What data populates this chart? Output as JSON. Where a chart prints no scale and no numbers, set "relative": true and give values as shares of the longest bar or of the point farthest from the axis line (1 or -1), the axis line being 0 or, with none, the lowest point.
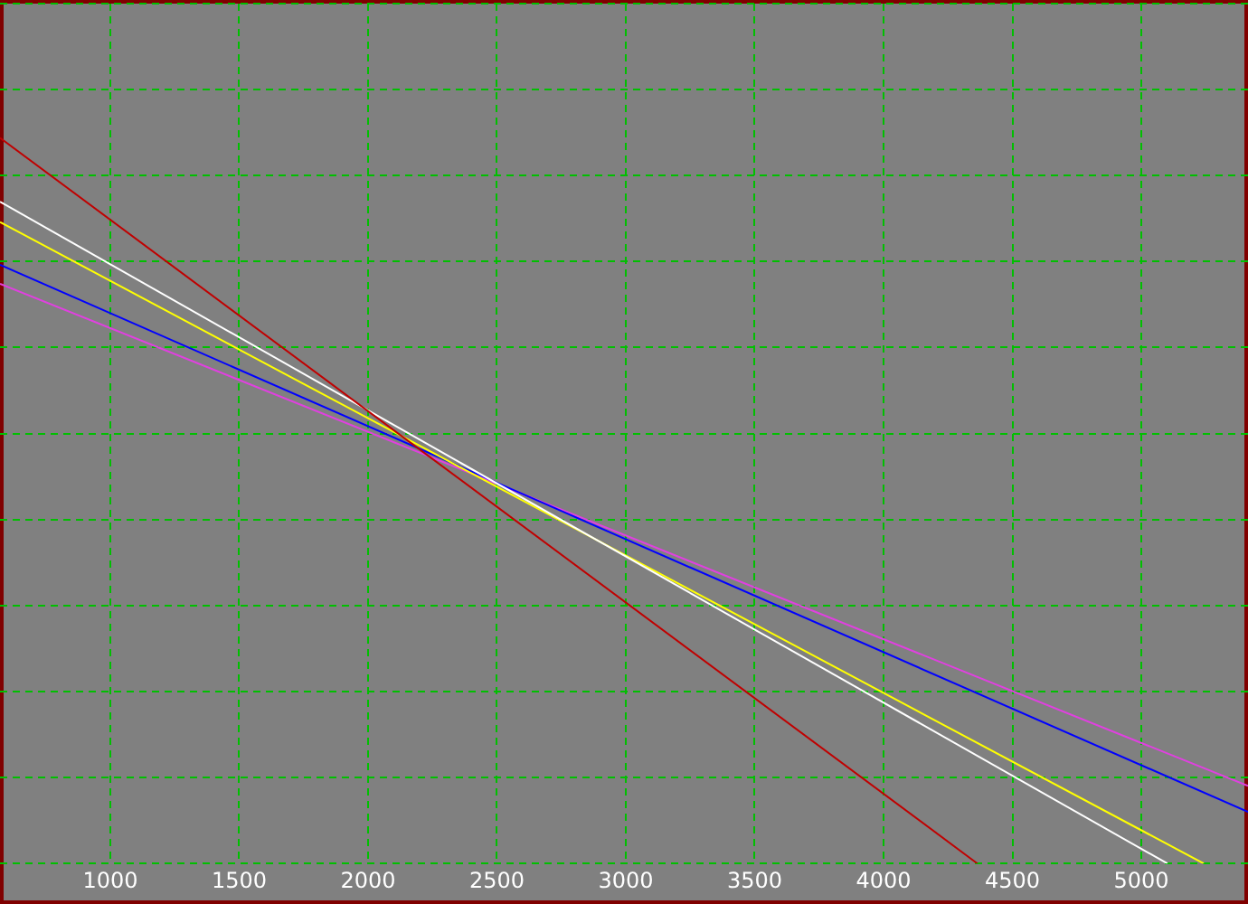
{
  "chart_data": {
    "type": "line",
    "relative": true,
    "xlim": [
      572,
      5414
    ],
    "xticks": [
      1000,
      1500,
      2000,
      2500,
      3000,
      3500,
      4000,
      4500,
      5000
    ],
    "tick_labels": "x",
    "grid": true,
    "legend": false,
    "marker": "none",
    "line_style": "solid",
    "series": [
      {
        "color": "#c00000",
        "x": [
          572,
          4364
        ],
        "values": [
          1,
          0
        ]
      },
      {
        "color": "#ffffff",
        "x": [
          572,
          5101
        ],
        "values": [
          0.912,
          0
        ]
      },
      {
        "color": "#ffff00",
        "x": [
          572,
          5242
        ],
        "values": [
          0.884,
          0
        ]
      },
      {
        "color": "#0000ff",
        "x": [
          572,
          5414
        ],
        "values": [
          0.825,
          0.071
        ]
      },
      {
        "color": "#e040e0",
        "x": [
          572,
          5414
        ],
        "values": [
          0.799,
          0.107
        ]
      }
    ]
  }
}
